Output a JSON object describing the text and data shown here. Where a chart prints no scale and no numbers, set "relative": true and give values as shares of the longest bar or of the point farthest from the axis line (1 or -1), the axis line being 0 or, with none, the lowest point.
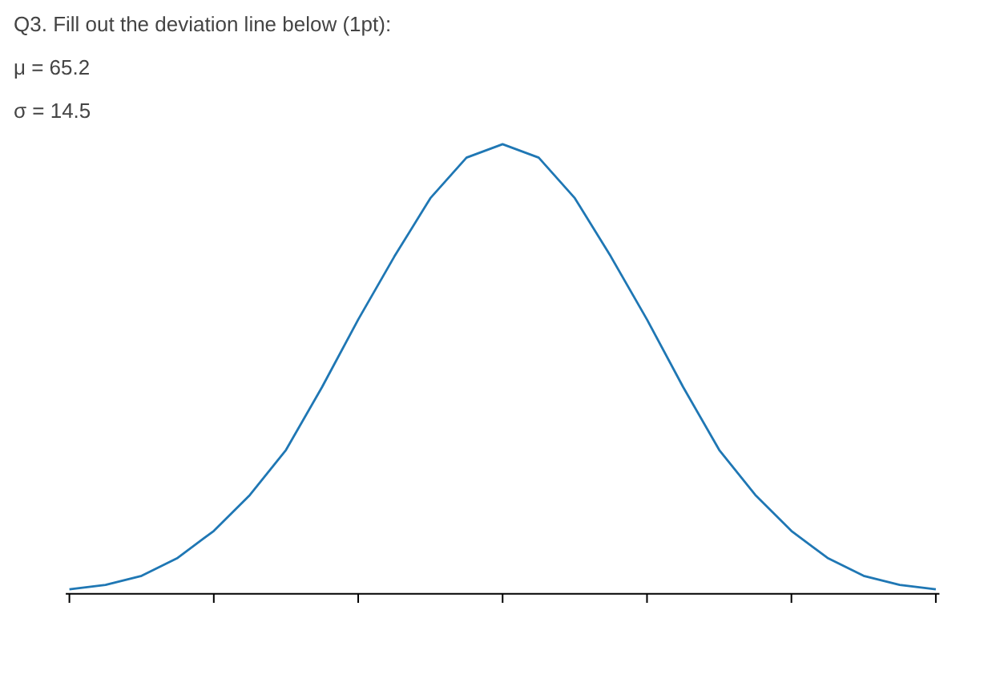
{
  "chart_data": {
    "type": "line",
    "relative": true,
    "title": "Q3. Fill out the deviation line below (1pt):",
    "annotations": [
      "μ = 65.2",
      "σ = 14.5"
    ],
    "categories": [
      null,
      null,
      null,
      null,
      null,
      null,
      null,
      null,
      null,
      null,
      null,
      null,
      null,
      null,
      null,
      null,
      null,
      null,
      null,
      null,
      null,
      null,
      null,
      null,
      null
    ],
    "series": [
      {
        "color": "#1f77b4",
        "values": [
          0.01,
          0.02,
          0.04,
          0.08,
          0.14,
          0.22,
          0.32,
          0.46,
          0.61,
          0.75,
          0.88,
          0.97,
          1,
          0.97,
          0.88,
          0.75,
          0.61,
          0.46,
          0.32,
          0.22,
          0.14,
          0.08,
          0.04,
          0.02,
          0.01
        ]
      }
    ],
    "grid": false,
    "marker": "none",
    "line_style": "solid"
  }
}
